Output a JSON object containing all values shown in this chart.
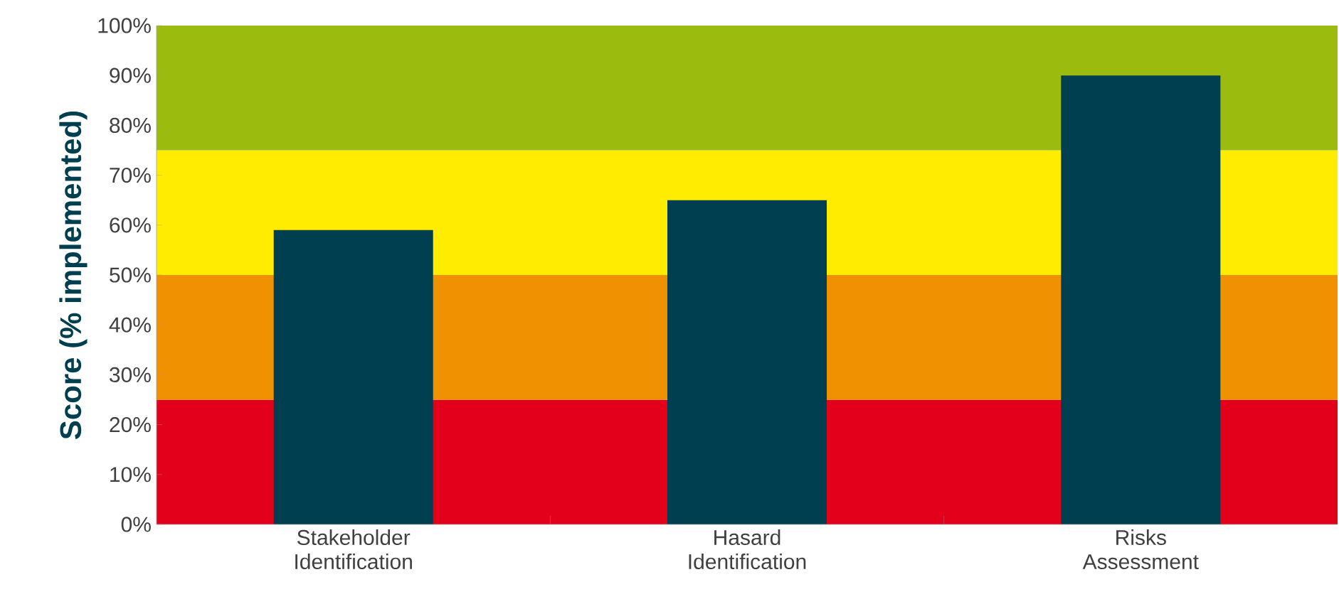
{
  "chart_data": {
    "type": "bar",
    "ylabel": "Score (% implemented)",
    "categories": [
      "Stakeholder Identification",
      "Hasard Identification",
      "Risks Assessment"
    ],
    "values": [
      59,
      65,
      90
    ],
    "color": "#003f50",
    "ylim": [
      0,
      100
    ],
    "yticks": [
      {
        "value": 0,
        "label": "0%"
      },
      {
        "value": 10,
        "label": "10%"
      },
      {
        "value": 20,
        "label": "20%"
      },
      {
        "value": 30,
        "label": "30%"
      },
      {
        "value": 40,
        "label": "40%"
      },
      {
        "value": 50,
        "label": "50%"
      },
      {
        "value": 60,
        "label": "60%"
      },
      {
        "value": 70,
        "label": "70%"
      },
      {
        "value": 80,
        "label": "80%"
      },
      {
        "value": 90,
        "label": "90%"
      },
      {
        "value": 100,
        "label": "100%"
      }
    ],
    "bands": [
      {
        "axis": "y",
        "from": 0,
        "to": 25,
        "color": "#e2001a"
      },
      {
        "axis": "y",
        "from": 25,
        "to": 50,
        "color": "#ef9100"
      },
      {
        "axis": "y",
        "from": 50,
        "to": 75,
        "color": "#ffec00"
      },
      {
        "axis": "y",
        "from": 75,
        "to": 100,
        "color": "#9bbb0e"
      }
    ],
    "grid": false
  }
}
